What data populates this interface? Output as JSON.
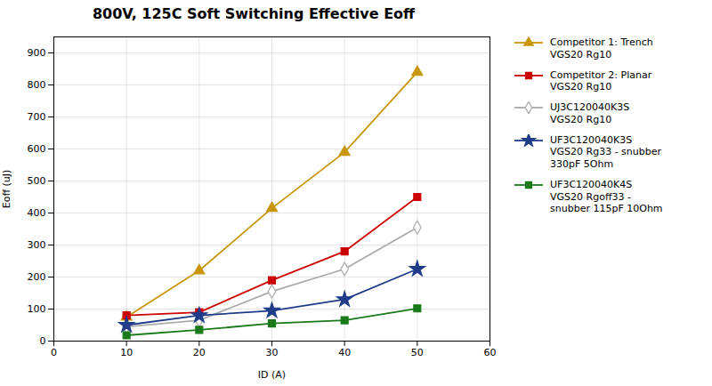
{
  "chart_data": {
    "type": "line",
    "title": "800V, 125C Soft Switching Effective Eoff",
    "xlabel": "ID (A)",
    "ylabel": "Eoff (uJ)",
    "x": [
      10,
      20,
      30,
      40,
      50
    ],
    "xlim": [
      0,
      60
    ],
    "xticks": [
      0,
      10,
      20,
      30,
      40,
      50,
      60
    ],
    "ylim": [
      0,
      950
    ],
    "yticks": [
      0,
      100,
      200,
      300,
      400,
      500,
      600,
      700,
      800,
      900
    ],
    "grid": true,
    "legend": "right",
    "series": [
      {
        "name": "Competitor 1: Trench\nVGS20 Rg10",
        "color": "#C8960C",
        "marker": "triangle",
        "values": [
          75,
          220,
          415,
          590,
          840
        ]
      },
      {
        "name": "Competitor 2: Planar\nVGS20 Rg10",
        "color": "#CC0000",
        "marker": "square",
        "values": [
          80,
          90,
          190,
          280,
          450
        ]
      },
      {
        "name": "UJ3C120040K3S\nVGS20 Rg10",
        "color": "#AAAAAA",
        "marker": "open_diamond",
        "values": [
          45,
          65,
          155,
          225,
          355
        ]
      },
      {
        "name": "UF3C120040K3S\nVGS20 Rg33 - snubber\n330pF 5Ohm",
        "color": "#1F3C88",
        "marker": "star",
        "values": [
          50,
          80,
          95,
          130,
          225
        ]
      },
      {
        "name": "UF3C120040K4S\nVGS20 Rgoff33 -\nsnubber 115pF 10Ohm",
        "color": "#1A7A1A",
        "marker": "square",
        "values": [
          18,
          35,
          55,
          65,
          102
        ]
      }
    ]
  }
}
